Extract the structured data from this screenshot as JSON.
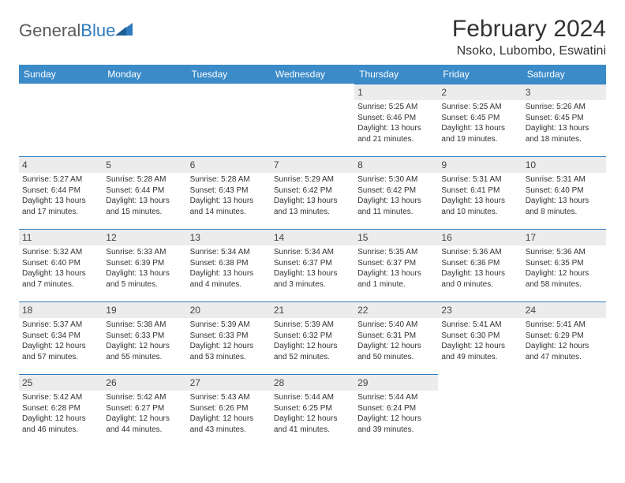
{
  "logo": {
    "word1": "General",
    "word2": "Blue"
  },
  "title": "February 2024",
  "location": "Nsoko, Lubombo, Eswatini",
  "colors": {
    "header_bg": "#3b8bc9",
    "header_text": "#ffffff",
    "daynum_bg": "#ececec",
    "daynum_border": "#2f7bbf",
    "body_text": "#333333",
    "logo_gray": "#5a5a5a",
    "logo_blue": "#2f7bbf"
  },
  "weekdays": [
    "Sunday",
    "Monday",
    "Tuesday",
    "Wednesday",
    "Thursday",
    "Friday",
    "Saturday"
  ],
  "weeks": [
    [
      null,
      null,
      null,
      null,
      {
        "n": "1",
        "sr": "Sunrise: 5:25 AM",
        "ss": "Sunset: 6:46 PM",
        "dl1": "Daylight: 13 hours",
        "dl2": "and 21 minutes."
      },
      {
        "n": "2",
        "sr": "Sunrise: 5:25 AM",
        "ss": "Sunset: 6:45 PM",
        "dl1": "Daylight: 13 hours",
        "dl2": "and 19 minutes."
      },
      {
        "n": "3",
        "sr": "Sunrise: 5:26 AM",
        "ss": "Sunset: 6:45 PM",
        "dl1": "Daylight: 13 hours",
        "dl2": "and 18 minutes."
      }
    ],
    [
      {
        "n": "4",
        "sr": "Sunrise: 5:27 AM",
        "ss": "Sunset: 6:44 PM",
        "dl1": "Daylight: 13 hours",
        "dl2": "and 17 minutes."
      },
      {
        "n": "5",
        "sr": "Sunrise: 5:28 AM",
        "ss": "Sunset: 6:44 PM",
        "dl1": "Daylight: 13 hours",
        "dl2": "and 15 minutes."
      },
      {
        "n": "6",
        "sr": "Sunrise: 5:28 AM",
        "ss": "Sunset: 6:43 PM",
        "dl1": "Daylight: 13 hours",
        "dl2": "and 14 minutes."
      },
      {
        "n": "7",
        "sr": "Sunrise: 5:29 AM",
        "ss": "Sunset: 6:42 PM",
        "dl1": "Daylight: 13 hours",
        "dl2": "and 13 minutes."
      },
      {
        "n": "8",
        "sr": "Sunrise: 5:30 AM",
        "ss": "Sunset: 6:42 PM",
        "dl1": "Daylight: 13 hours",
        "dl2": "and 11 minutes."
      },
      {
        "n": "9",
        "sr": "Sunrise: 5:31 AM",
        "ss": "Sunset: 6:41 PM",
        "dl1": "Daylight: 13 hours",
        "dl2": "and 10 minutes."
      },
      {
        "n": "10",
        "sr": "Sunrise: 5:31 AM",
        "ss": "Sunset: 6:40 PM",
        "dl1": "Daylight: 13 hours",
        "dl2": "and 8 minutes."
      }
    ],
    [
      {
        "n": "11",
        "sr": "Sunrise: 5:32 AM",
        "ss": "Sunset: 6:40 PM",
        "dl1": "Daylight: 13 hours",
        "dl2": "and 7 minutes."
      },
      {
        "n": "12",
        "sr": "Sunrise: 5:33 AM",
        "ss": "Sunset: 6:39 PM",
        "dl1": "Daylight: 13 hours",
        "dl2": "and 5 minutes."
      },
      {
        "n": "13",
        "sr": "Sunrise: 5:34 AM",
        "ss": "Sunset: 6:38 PM",
        "dl1": "Daylight: 13 hours",
        "dl2": "and 4 minutes."
      },
      {
        "n": "14",
        "sr": "Sunrise: 5:34 AM",
        "ss": "Sunset: 6:37 PM",
        "dl1": "Daylight: 13 hours",
        "dl2": "and 3 minutes."
      },
      {
        "n": "15",
        "sr": "Sunrise: 5:35 AM",
        "ss": "Sunset: 6:37 PM",
        "dl1": "Daylight: 13 hours",
        "dl2": "and 1 minute."
      },
      {
        "n": "16",
        "sr": "Sunrise: 5:36 AM",
        "ss": "Sunset: 6:36 PM",
        "dl1": "Daylight: 13 hours",
        "dl2": "and 0 minutes."
      },
      {
        "n": "17",
        "sr": "Sunrise: 5:36 AM",
        "ss": "Sunset: 6:35 PM",
        "dl1": "Daylight: 12 hours",
        "dl2": "and 58 minutes."
      }
    ],
    [
      {
        "n": "18",
        "sr": "Sunrise: 5:37 AM",
        "ss": "Sunset: 6:34 PM",
        "dl1": "Daylight: 12 hours",
        "dl2": "and 57 minutes."
      },
      {
        "n": "19",
        "sr": "Sunrise: 5:38 AM",
        "ss": "Sunset: 6:33 PM",
        "dl1": "Daylight: 12 hours",
        "dl2": "and 55 minutes."
      },
      {
        "n": "20",
        "sr": "Sunrise: 5:39 AM",
        "ss": "Sunset: 6:33 PM",
        "dl1": "Daylight: 12 hours",
        "dl2": "and 53 minutes."
      },
      {
        "n": "21",
        "sr": "Sunrise: 5:39 AM",
        "ss": "Sunset: 6:32 PM",
        "dl1": "Daylight: 12 hours",
        "dl2": "and 52 minutes."
      },
      {
        "n": "22",
        "sr": "Sunrise: 5:40 AM",
        "ss": "Sunset: 6:31 PM",
        "dl1": "Daylight: 12 hours",
        "dl2": "and 50 minutes."
      },
      {
        "n": "23",
        "sr": "Sunrise: 5:41 AM",
        "ss": "Sunset: 6:30 PM",
        "dl1": "Daylight: 12 hours",
        "dl2": "and 49 minutes."
      },
      {
        "n": "24",
        "sr": "Sunrise: 5:41 AM",
        "ss": "Sunset: 6:29 PM",
        "dl1": "Daylight: 12 hours",
        "dl2": "and 47 minutes."
      }
    ],
    [
      {
        "n": "25",
        "sr": "Sunrise: 5:42 AM",
        "ss": "Sunset: 6:28 PM",
        "dl1": "Daylight: 12 hours",
        "dl2": "and 46 minutes."
      },
      {
        "n": "26",
        "sr": "Sunrise: 5:42 AM",
        "ss": "Sunset: 6:27 PM",
        "dl1": "Daylight: 12 hours",
        "dl2": "and 44 minutes."
      },
      {
        "n": "27",
        "sr": "Sunrise: 5:43 AM",
        "ss": "Sunset: 6:26 PM",
        "dl1": "Daylight: 12 hours",
        "dl2": "and 43 minutes."
      },
      {
        "n": "28",
        "sr": "Sunrise: 5:44 AM",
        "ss": "Sunset: 6:25 PM",
        "dl1": "Daylight: 12 hours",
        "dl2": "and 41 minutes."
      },
      {
        "n": "29",
        "sr": "Sunrise: 5:44 AM",
        "ss": "Sunset: 6:24 PM",
        "dl1": "Daylight: 12 hours",
        "dl2": "and 39 minutes."
      },
      null,
      null
    ]
  ]
}
